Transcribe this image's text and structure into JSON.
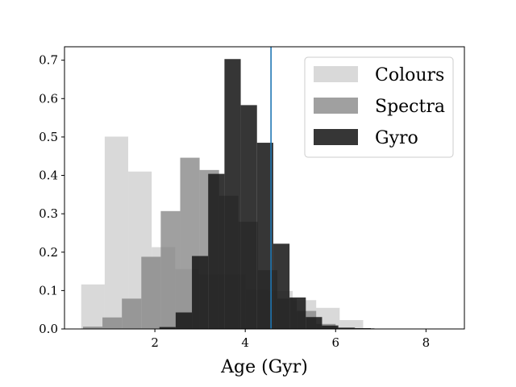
{
  "chart_data": {
    "type": "bar",
    "title": "",
    "xlabel": "Age (Gyr)",
    "ylabel": "",
    "xlim": [
      0.0,
      8.85
    ],
    "ylim": [
      0.0,
      0.735
    ],
    "xticks": [
      2,
      4,
      6,
      8
    ],
    "yticks": [
      0.0,
      0.1,
      0.2,
      0.3,
      0.4,
      0.5,
      0.6,
      0.7
    ],
    "grid": false,
    "legend_position": "top-right",
    "reference_line": {
      "x": 4.57,
      "color": "#1f77b4"
    },
    "series": [
      {
        "name": "Colours",
        "color": "#bfbfbf",
        "opacity": 0.6,
        "bins": [
          [
            0.37,
            0.89,
            0.116
          ],
          [
            0.89,
            1.41,
            0.501
          ],
          [
            1.41,
            1.93,
            0.41
          ],
          [
            1.93,
            2.45,
            0.213
          ],
          [
            2.45,
            2.97,
            0.156
          ],
          [
            2.97,
            3.49,
            0.142
          ],
          [
            3.49,
            4.01,
            0.142
          ],
          [
            4.01,
            4.53,
            0.101
          ],
          [
            4.53,
            5.05,
            0.099
          ],
          [
            5.05,
            5.57,
            0.075
          ],
          [
            5.57,
            6.09,
            0.055
          ],
          [
            6.09,
            6.61,
            0.023
          ]
        ]
      },
      {
        "name": "Spectra",
        "color": "#808080",
        "opacity": 0.75,
        "bins": [
          [
            0.41,
            0.84,
            0.006
          ],
          [
            0.84,
            1.27,
            0.03
          ],
          [
            1.27,
            1.7,
            0.079
          ],
          [
            1.7,
            2.13,
            0.188
          ],
          [
            2.13,
            2.56,
            0.307
          ],
          [
            2.56,
            2.99,
            0.446
          ],
          [
            2.99,
            3.42,
            0.414
          ],
          [
            3.42,
            3.85,
            0.347
          ],
          [
            3.85,
            4.28,
            0.279
          ],
          [
            4.28,
            4.71,
            0.153
          ],
          [
            4.71,
            5.14,
            0.079
          ],
          [
            5.14,
            5.57,
            0.047
          ],
          [
            5.57,
            6.0,
            0.013
          ],
          [
            6.0,
            6.43,
            0.004
          ],
          [
            6.43,
            6.86,
            0.002
          ]
        ]
      },
      {
        "name": "Gyro",
        "color": "#1a1a1a",
        "opacity": 0.88,
        "bins": [
          [
            2.1,
            2.46,
            0.005
          ],
          [
            2.46,
            2.82,
            0.043
          ],
          [
            2.82,
            3.18,
            0.19
          ],
          [
            3.18,
            3.54,
            0.404
          ],
          [
            3.54,
            3.9,
            0.703
          ],
          [
            3.9,
            4.26,
            0.583
          ],
          [
            4.26,
            4.62,
            0.485
          ],
          [
            4.62,
            4.98,
            0.222
          ],
          [
            4.98,
            5.34,
            0.082
          ],
          [
            5.34,
            5.7,
            0.031
          ],
          [
            5.7,
            6.06,
            0.009
          ],
          [
            6.06,
            6.42,
            0.003
          ],
          [
            6.42,
            6.78,
            0.002
          ],
          [
            6.78,
            7.14,
            0.001
          ],
          [
            7.14,
            7.5,
            0.001
          ]
        ]
      }
    ]
  }
}
